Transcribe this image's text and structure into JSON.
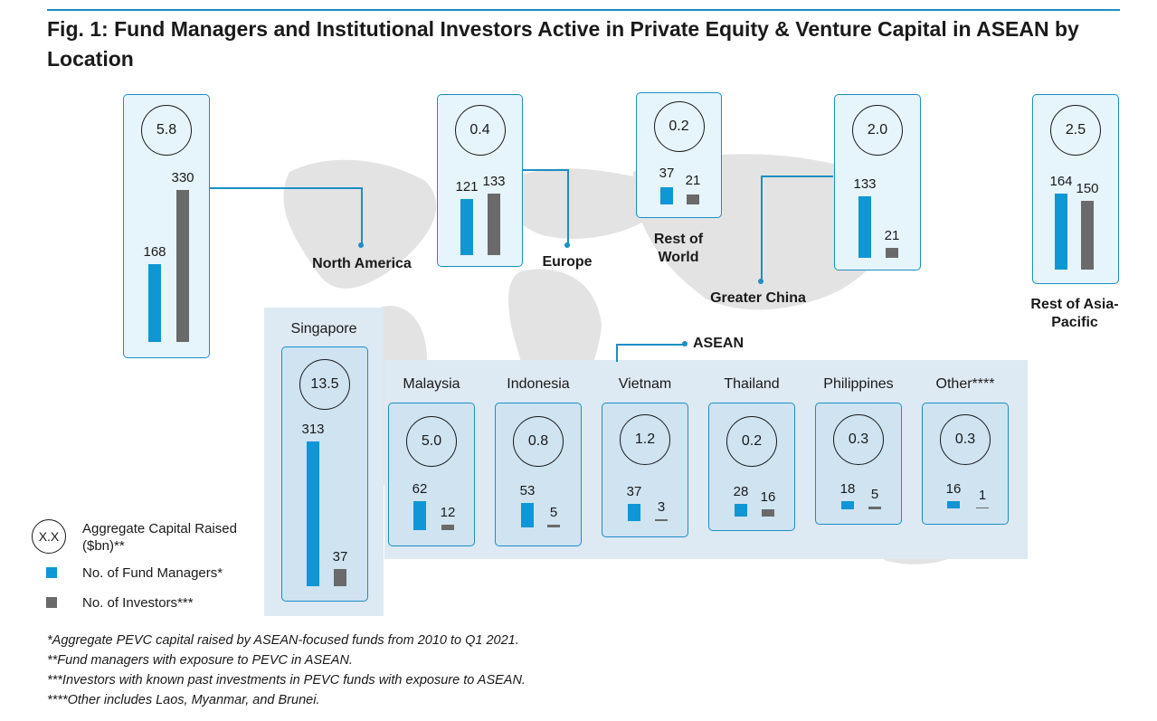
{
  "title": "Fig. 1: Fund Managers and Institutional Investors Active in Private Equity & Venture Capital in ASEAN by Location",
  "colors": {
    "fund_managers": "#0f96d4",
    "investors": "#6a6a6a",
    "accent": "#1a8fc4",
    "asean_band": "#dde9f3"
  },
  "legend": {
    "circle_label": "X.X",
    "capital": "Aggregate Capital Raised ($bn)**",
    "fund_managers": "No. of Fund Managers*",
    "investors": "No. of Investors***"
  },
  "notes": [
    "*Aggregate PEVC capital raised by ASEAN-focused funds from 2010 to Q1 2021.",
    "**Fund managers with exposure to PEVC in ASEAN.",
    "***Investors with known past investments in PEVC funds with exposure to ASEAN.",
    "****Other includes Laos, Myanmar, and Brunei."
  ],
  "asean_label": "ASEAN",
  "chart_data": {
    "type": "bar",
    "series_names": [
      "No. of Fund Managers*",
      "No. of Investors***"
    ],
    "regions": [
      {
        "name": "North America",
        "capital": "5.8",
        "fund_managers": 168,
        "investors": 330
      },
      {
        "name": "Europe",
        "capital": "0.4",
        "fund_managers": 121,
        "investors": 133
      },
      {
        "name": "Rest of World",
        "capital": "0.2",
        "fund_managers": 37,
        "investors": 21
      },
      {
        "name": "Greater China",
        "capital": "2.0",
        "fund_managers": 133,
        "investors": 21
      },
      {
        "name": "Rest of Asia-Pacific",
        "capital": "2.5",
        "fund_managers": 164,
        "investors": 150
      }
    ],
    "asean": [
      {
        "name": "Singapore",
        "capital": "13.5",
        "fund_managers": 313,
        "investors": 37
      },
      {
        "name": "Malaysia",
        "capital": "5.0",
        "fund_managers": 62,
        "investors": 12
      },
      {
        "name": "Indonesia",
        "capital": "0.8",
        "fund_managers": 53,
        "investors": 5
      },
      {
        "name": "Vietnam",
        "capital": "1.2",
        "fund_managers": 37,
        "investors": 3
      },
      {
        "name": "Thailand",
        "capital": "0.2",
        "fund_managers": 28,
        "investors": 16
      },
      {
        "name": "Philippines",
        "capital": "0.3",
        "fund_managers": 18,
        "investors": 5
      },
      {
        "name": "Other****",
        "capital": "0.3",
        "fund_managers": 16,
        "investors": 1
      }
    ]
  }
}
